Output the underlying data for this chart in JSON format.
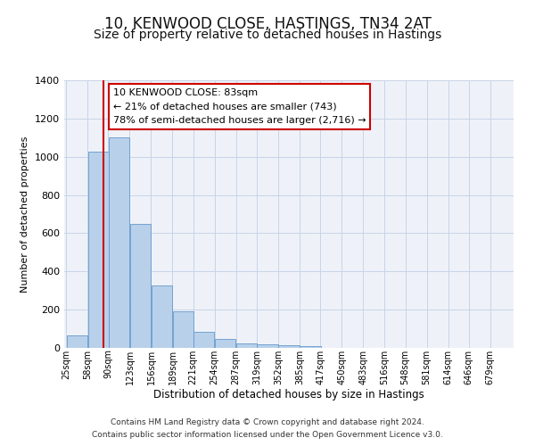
{
  "title": "10, KENWOOD CLOSE, HASTINGS, TN34 2AT",
  "subtitle": "Size of property relative to detached houses in Hastings",
  "xlabel": "Distribution of detached houses by size in Hastings",
  "ylabel": "Number of detached properties",
  "bin_labels": [
    "25sqm",
    "58sqm",
    "90sqm",
    "123sqm",
    "156sqm",
    "189sqm",
    "221sqm",
    "254sqm",
    "287sqm",
    "319sqm",
    "352sqm",
    "385sqm",
    "417sqm",
    "450sqm",
    "483sqm",
    "516sqm",
    "548sqm",
    "581sqm",
    "614sqm",
    "646sqm",
    "679sqm"
  ],
  "bar_heights": [
    65,
    1025,
    1100,
    650,
    325,
    190,
    85,
    45,
    22,
    18,
    12,
    8,
    0,
    0,
    0,
    0,
    0,
    0,
    0,
    0,
    0
  ],
  "bar_color": "#b8d0ea",
  "bar_edge_color": "#6699cc",
  "property_line_x": 83,
  "property_line_color": "#cc0000",
  "annotation_line1": "10 KENWOOD CLOSE: 83sqm",
  "annotation_line2": "← 21% of detached houses are smaller (743)",
  "annotation_line3": "78% of semi-detached houses are larger (2,716) →",
  "annotation_box_color": "#ffffff",
  "annotation_box_edge_color": "#cc0000",
  "ylim": [
    0,
    1400
  ],
  "yticks": [
    0,
    200,
    400,
    600,
    800,
    1000,
    1200,
    1400
  ],
  "footnote1": "Contains HM Land Registry data © Crown copyright and database right 2024.",
  "footnote2": "Contains public sector information licensed under the Open Government Licence v3.0.",
  "background_color": "#ffffff",
  "plot_bg_color": "#eef2f8",
  "grid_color": "#c8d4e8",
  "title_fontsize": 12,
  "subtitle_fontsize": 10,
  "bin_width": 33
}
